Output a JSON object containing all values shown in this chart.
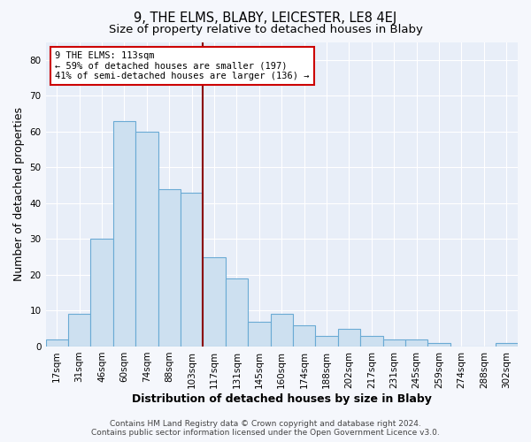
{
  "title": "9, THE ELMS, BLABY, LEICESTER, LE8 4EJ",
  "subtitle": "Size of property relative to detached houses in Blaby",
  "xlabel": "Distribution of detached houses by size in Blaby",
  "ylabel": "Number of detached properties",
  "categories": [
    "17sqm",
    "31sqm",
    "46sqm",
    "60sqm",
    "74sqm",
    "88sqm",
    "103sqm",
    "117sqm",
    "131sqm",
    "145sqm",
    "160sqm",
    "174sqm",
    "188sqm",
    "202sqm",
    "217sqm",
    "231sqm",
    "245sqm",
    "259sqm",
    "274sqm",
    "288sqm",
    "302sqm"
  ],
  "values": [
    2,
    9,
    30,
    63,
    60,
    44,
    43,
    25,
    19,
    7,
    9,
    6,
    3,
    5,
    3,
    2,
    2,
    1,
    0,
    0,
    1
  ],
  "bar_color": "#cde0f0",
  "bar_edge_color": "#6aaad4",
  "vline_color": "#8b0000",
  "annotation_title": "9 THE ELMS: 113sqm",
  "annotation_line1": "← 59% of detached houses are smaller (197)",
  "annotation_line2": "41% of semi-detached houses are larger (136) →",
  "annotation_box_color": "#ffffff",
  "annotation_box_edge": "#cc0000",
  "ylim": [
    0,
    85
  ],
  "yticks": [
    0,
    10,
    20,
    30,
    40,
    50,
    60,
    70,
    80
  ],
  "footer1": "Contains HM Land Registry data © Crown copyright and database right 2024.",
  "footer2": "Contains public sector information licensed under the Open Government Licence v3.0.",
  "plot_bg_color": "#e8eef8",
  "fig_bg_color": "#f5f7fc",
  "grid_color": "#ffffff",
  "title_fontsize": 10.5,
  "subtitle_fontsize": 9.5,
  "tick_fontsize": 7.5,
  "label_fontsize": 9,
  "footer_fontsize": 6.5
}
